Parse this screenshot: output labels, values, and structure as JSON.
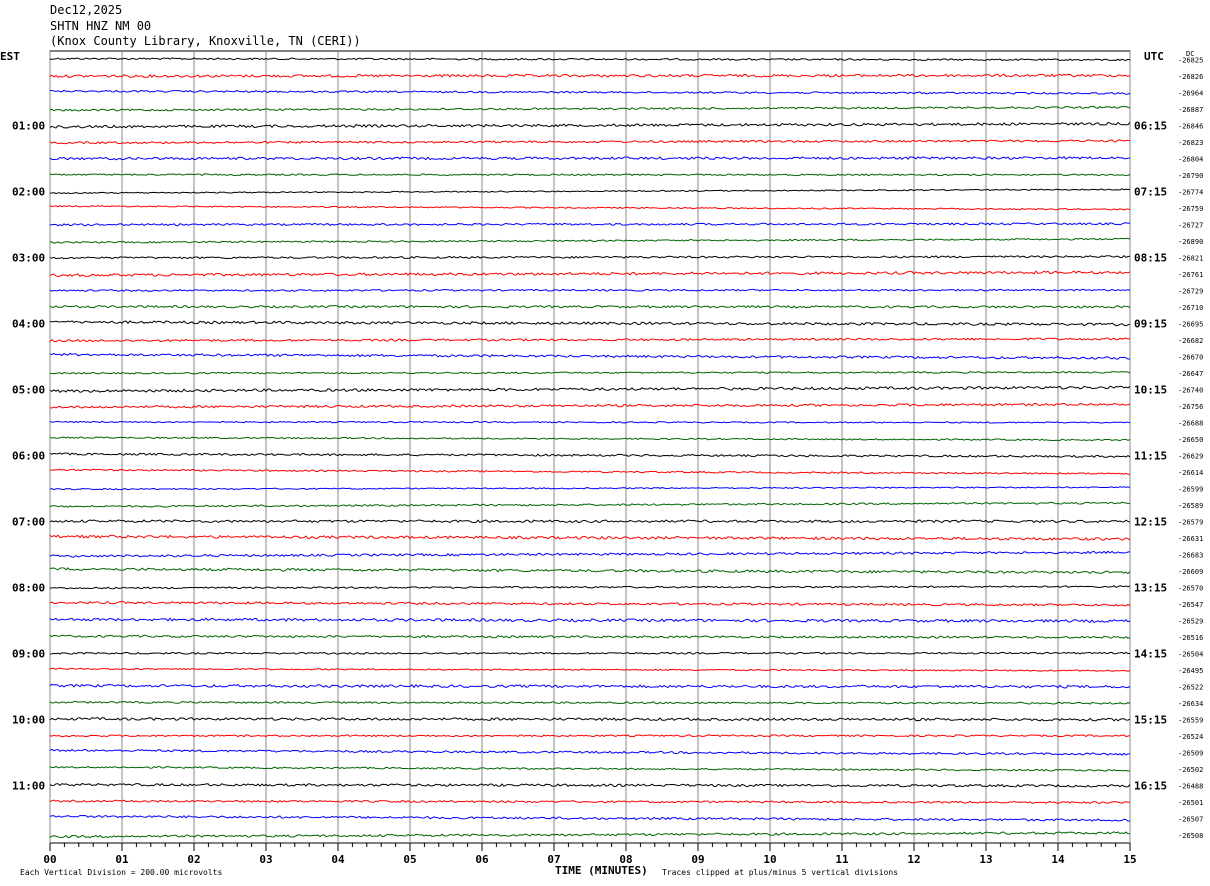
{
  "header": {
    "date": "Dec12,2025",
    "station": "SHTN HNZ NM 00",
    "location": "(Knox County Library, Knoxville, TN (CERI))"
  },
  "chart_data": {
    "type": "line",
    "title": "Dec12,2025",
    "left_axis_title": "EST",
    "right_axis_title": "UTC",
    "dc_title": "DC",
    "xlabel": "TIME (MINUTES)",
    "x_range": [
      0,
      15
    ],
    "x_ticks": [
      "00",
      "01",
      "02",
      "03",
      "04",
      "05",
      "06",
      "07",
      "08",
      "09",
      "10",
      "11",
      "12",
      "13",
      "14",
      "15"
    ],
    "left_time_labels": [
      "01:00",
      "02:00",
      "03:00",
      "04:00",
      "05:00",
      "06:00",
      "07:00",
      "08:00",
      "09:00",
      "10:00",
      "11:00"
    ],
    "right_time_labels": [
      "06:15",
      "07:15",
      "08:15",
      "09:15",
      "10:15",
      "11:15",
      "12:15",
      "13:15",
      "14:15",
      "15:15",
      "16:15"
    ],
    "trace_colors": [
      "#000000",
      "#ff0000",
      "#0000ff",
      "#006400"
    ],
    "dc_offsets": [
      -26825,
      -26826,
      -26964,
      -26887,
      -26846,
      -26823,
      -26804,
      -26790,
      -26774,
      -26759,
      -26727,
      -26890,
      -26821,
      -26761,
      -26729,
      -26710,
      -26695,
      -26682,
      -26670,
      -26647,
      -26740,
      -26756,
      -26688,
      -26650,
      -26629,
      -26614,
      -26599,
      -26589,
      -26579,
      -26631,
      -26683,
      -26609,
      -26570,
      -26547,
      -26529,
      -26516,
      -26504,
      -26495,
      -26522,
      -26634,
      -26559,
      -26524,
      -26509,
      -26502,
      -26488,
      -26501,
      -26507,
      -26508
    ],
    "footer_left": "Each Vertical Division =  200.00 microvolts",
    "footer_right": "Traces clipped at plus/minus 5 vertical divisions"
  }
}
